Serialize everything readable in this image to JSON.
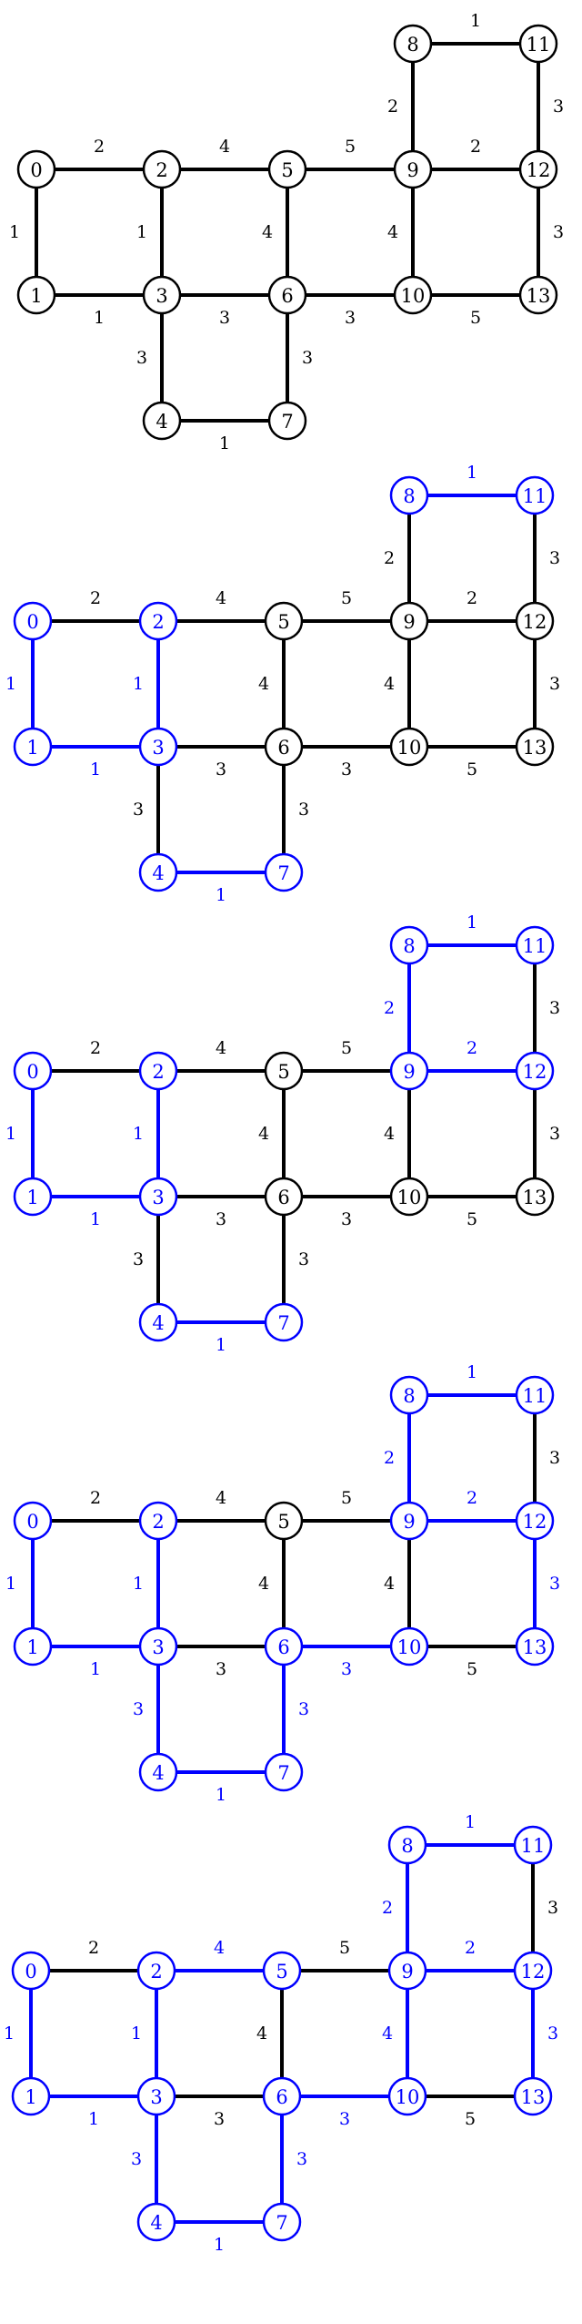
{
  "colors": {
    "base": "#000000",
    "highlight": "#0000ff",
    "background": "#ffffff"
  },
  "graph": {
    "nodes": [
      "0",
      "1",
      "2",
      "3",
      "4",
      "5",
      "6",
      "7",
      "8",
      "9",
      "10",
      "11",
      "12",
      "13"
    ],
    "edges": [
      {
        "from": "0",
        "to": "2",
        "weight": "2"
      },
      {
        "from": "2",
        "to": "5",
        "weight": "4"
      },
      {
        "from": "5",
        "to": "9",
        "weight": "5"
      },
      {
        "from": "9",
        "to": "12",
        "weight": "2"
      },
      {
        "from": "0",
        "to": "1",
        "weight": "1"
      },
      {
        "from": "2",
        "to": "3",
        "weight": "1"
      },
      {
        "from": "5",
        "to": "6",
        "weight": "4"
      },
      {
        "from": "9",
        "to": "10",
        "weight": "4"
      },
      {
        "from": "12",
        "to": "13",
        "weight": "3"
      },
      {
        "from": "1",
        "to": "3",
        "weight": "1"
      },
      {
        "from": "3",
        "to": "6",
        "weight": "3"
      },
      {
        "from": "6",
        "to": "10",
        "weight": "3"
      },
      {
        "from": "10",
        "to": "13",
        "weight": "5"
      },
      {
        "from": "3",
        "to": "4",
        "weight": "3"
      },
      {
        "from": "6",
        "to": "7",
        "weight": "3"
      },
      {
        "from": "4",
        "to": "7",
        "weight": "1"
      },
      {
        "from": "8",
        "to": "11",
        "weight": "1"
      },
      {
        "from": "8",
        "to": "9",
        "weight": "2"
      },
      {
        "from": "11",
        "to": "12",
        "weight": "3"
      }
    ]
  },
  "panels": [
    {
      "highlight_nodes": [],
      "highlight_edges": []
    },
    {
      "highlight_nodes": [
        "0",
        "1",
        "2",
        "3",
        "4",
        "7",
        "8",
        "11"
      ],
      "highlight_edges": [
        [
          0,
          1
        ],
        [
          2,
          3
        ],
        [
          1,
          3
        ],
        [
          4,
          7
        ],
        [
          8,
          11
        ]
      ]
    },
    {
      "highlight_nodes": [
        "0",
        "1",
        "2",
        "3",
        "4",
        "7",
        "8",
        "9",
        "11",
        "12"
      ],
      "highlight_edges": [
        [
          0,
          1
        ],
        [
          2,
          3
        ],
        [
          1,
          3
        ],
        [
          4,
          7
        ],
        [
          8,
          11
        ],
        [
          8,
          9
        ],
        [
          9,
          12
        ]
      ]
    },
    {
      "highlight_nodes": [
        "0",
        "1",
        "2",
        "3",
        "4",
        "6",
        "7",
        "8",
        "9",
        "10",
        "11",
        "12",
        "13"
      ],
      "highlight_edges": [
        [
          0,
          1
        ],
        [
          2,
          3
        ],
        [
          1,
          3
        ],
        [
          4,
          7
        ],
        [
          8,
          11
        ],
        [
          8,
          9
        ],
        [
          9,
          12
        ],
        [
          3,
          4
        ],
        [
          6,
          7
        ],
        [
          6,
          10
        ],
        [
          12,
          13
        ]
      ]
    },
    {
      "highlight_nodes": [
        "0",
        "1",
        "2",
        "3",
        "4",
        "5",
        "6",
        "7",
        "8",
        "9",
        "10",
        "11",
        "12",
        "13"
      ],
      "highlight_edges": [
        [
          0,
          1
        ],
        [
          2,
          3
        ],
        [
          1,
          3
        ],
        [
          4,
          7
        ],
        [
          8,
          11
        ],
        [
          8,
          9
        ],
        [
          9,
          12
        ],
        [
          3,
          4
        ],
        [
          6,
          7
        ],
        [
          6,
          10
        ],
        [
          12,
          13
        ],
        [
          2,
          5
        ],
        [
          9,
          10
        ]
      ]
    }
  ]
}
